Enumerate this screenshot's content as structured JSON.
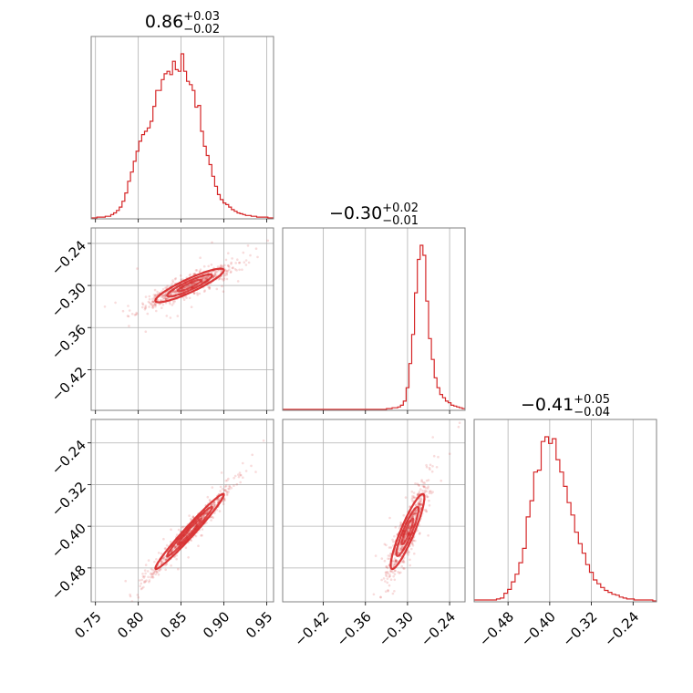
{
  "chart_data": {
    "type": "corner",
    "color": "#d62728",
    "parameters": [
      {
        "index": 0,
        "title_median": "0.86",
        "title_plus": "+0.03",
        "title_minus": "−0.02",
        "median": 0.86,
        "plus": 0.03,
        "minus": 0.02,
        "range": [
          0.745,
          0.958
        ],
        "ticks": [
          0.75,
          0.8,
          0.85,
          0.9,
          0.95
        ],
        "tick_labels": [
          "0.75",
          "0.80",
          "0.85",
          "0.90",
          "0.95"
        ],
        "hist_edges": [
          0.745,
          0.958
        ],
        "hist_counts": [
          0,
          0,
          1,
          1,
          1,
          2,
          2,
          4,
          6,
          9,
          13,
          20,
          30,
          44,
          55,
          68,
          80,
          92,
          100,
          104,
          108,
          116,
          134,
          153,
          153,
          166,
          173,
          176,
          172,
          188,
          178,
          176,
          197,
          176,
          164,
          160,
          153,
          133,
          135,
          104,
          86,
          75,
          64,
          50,
          38,
          28,
          22,
          18,
          16,
          13,
          10,
          8,
          6,
          5,
          4,
          3,
          3,
          2,
          2,
          1,
          1,
          1,
          1,
          0,
          0
        ]
      },
      {
        "index": 1,
        "title_median": "−0.30",
        "title_plus": "+0.02",
        "title_minus": "−0.01",
        "median": -0.3,
        "plus": 0.02,
        "minus": 0.01,
        "range": [
          -0.478,
          -0.218
        ],
        "ticks": [
          -0.42,
          -0.36,
          -0.3,
          -0.24
        ],
        "tick_labels": [
          "−0.42",
          "−0.36",
          "−0.30",
          "−0.24"
        ],
        "hist_edges": [
          -0.478,
          -0.218
        ],
        "hist_counts": [
          0,
          0,
          0,
          0,
          0,
          0,
          0,
          0,
          0,
          0,
          0,
          0,
          0,
          0,
          0,
          0,
          0,
          0,
          0,
          0,
          0,
          0,
          0,
          0,
          0,
          0,
          0,
          0,
          0,
          0,
          0,
          0,
          0,
          0,
          0,
          0,
          0,
          1,
          1,
          2,
          2,
          3,
          5,
          10,
          26,
          55,
          90,
          140,
          180,
          197,
          185,
          130,
          85,
          60,
          38,
          26,
          18,
          14,
          10,
          8,
          5,
          4,
          3,
          2,
          1
        ]
      },
      {
        "index": 2,
        "title_median": "−0.41",
        "title_plus": "+0.05",
        "title_minus": "−0.04",
        "median": -0.41,
        "plus": 0.05,
        "minus": 0.04,
        "range": [
          -0.545,
          -0.195
        ],
        "ticks": [
          -0.48,
          -0.4,
          -0.32,
          -0.24
        ],
        "tick_labels": [
          "−0.48",
          "−0.40",
          "−0.32",
          "−0.24"
        ],
        "hist_edges": [
          -0.545,
          -0.195
        ],
        "hist_counts": [
          1,
          1,
          1,
          1,
          1,
          1,
          2,
          3,
          8,
          12,
          20,
          28,
          40,
          55,
          88,
          105,
          135,
          137,
          167,
          172,
          165,
          170,
          148,
          135,
          120,
          103,
          90,
          72,
          60,
          50,
          38,
          30,
          22,
          18,
          14,
          11,
          9,
          7,
          6,
          4,
          3,
          2,
          2,
          1,
          1,
          1,
          1,
          1,
          0
        ]
      }
    ],
    "pairs": [
      {
        "x": 0,
        "y": 1,
        "correlation": 0.9
      },
      {
        "x": 0,
        "y": 2,
        "correlation": 0.98
      },
      {
        "x": 1,
        "y": 2,
        "correlation": 0.9
      }
    ],
    "grid": true
  }
}
